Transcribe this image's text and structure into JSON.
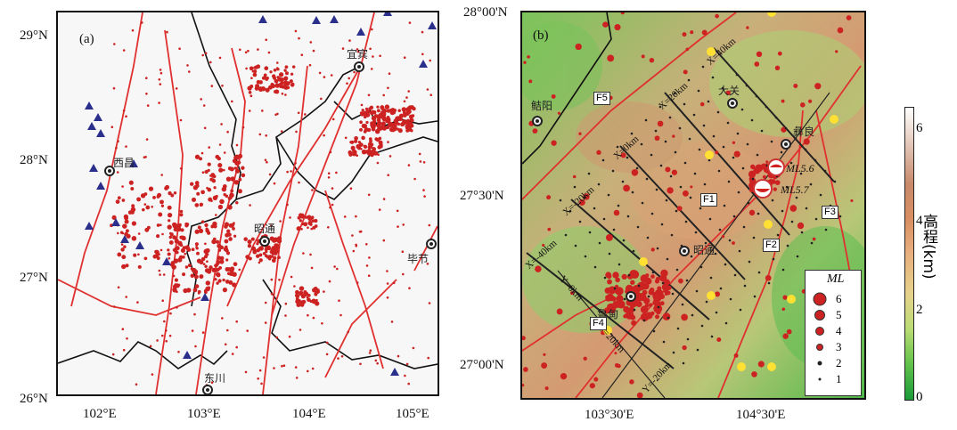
{
  "panel_a": {
    "tag": "(a)",
    "lat_labels": [
      "29°N",
      "28°N",
      "27°N",
      "26°N"
    ],
    "lon_labels": [
      "102°E",
      "103°E",
      "104°E",
      "105°E"
    ],
    "cities": [
      {
        "id": "yibin",
        "name": "宜宾"
      },
      {
        "id": "xichang",
        "name": "西昌"
      },
      {
        "id": "zhaotong",
        "name": "昭通"
      },
      {
        "id": "bijie",
        "name": "毕节"
      },
      {
        "id": "dongchuan",
        "name": "东川"
      }
    ]
  },
  "panel_b": {
    "tag": "(b)",
    "lat_labels": [
      "28°00'N",
      "27°30'N",
      "27°00'N"
    ],
    "lon_labels": [
      "103°30'E",
      "104°30'E"
    ],
    "cities": [
      {
        "id": "mianyang",
        "name": "鲒阳"
      },
      {
        "id": "daguan",
        "name": "大关"
      },
      {
        "id": "yiliang",
        "name": "彝良"
      },
      {
        "id": "zhaotong",
        "name": "昭通"
      },
      {
        "id": "ludian",
        "name": "鲁甸"
      }
    ],
    "profiles": [
      "X=40km",
      "X=20km",
      "X=0km",
      "X=-20km",
      "X=-40km"
    ],
    "perp_profiles": [
      "Y=0km",
      "Y=20km",
      "Y=-20km"
    ],
    "faults": [
      "F1",
      "F2",
      "F3",
      "F4",
      "F5"
    ],
    "mainshocks": [
      "ML5.6",
      "ML5.7"
    ]
  },
  "legend": {
    "title": "ML",
    "magnitudes": [
      "6",
      "5",
      "4",
      "3",
      "2",
      "1"
    ]
  },
  "colorbar": {
    "title": "高程(km)",
    "ticks": [
      "6",
      "4",
      "2",
      "0"
    ],
    "colors": [
      "#1a9a3a",
      "#e6d28a",
      "#d98e62",
      "#ffffff"
    ]
  },
  "colors": {
    "events": "#cc2222",
    "faults": "#e03030",
    "stations": "#2a2f8c",
    "borders": "#111111",
    "profiles": "#222222",
    "highlight": "#ffe033"
  }
}
